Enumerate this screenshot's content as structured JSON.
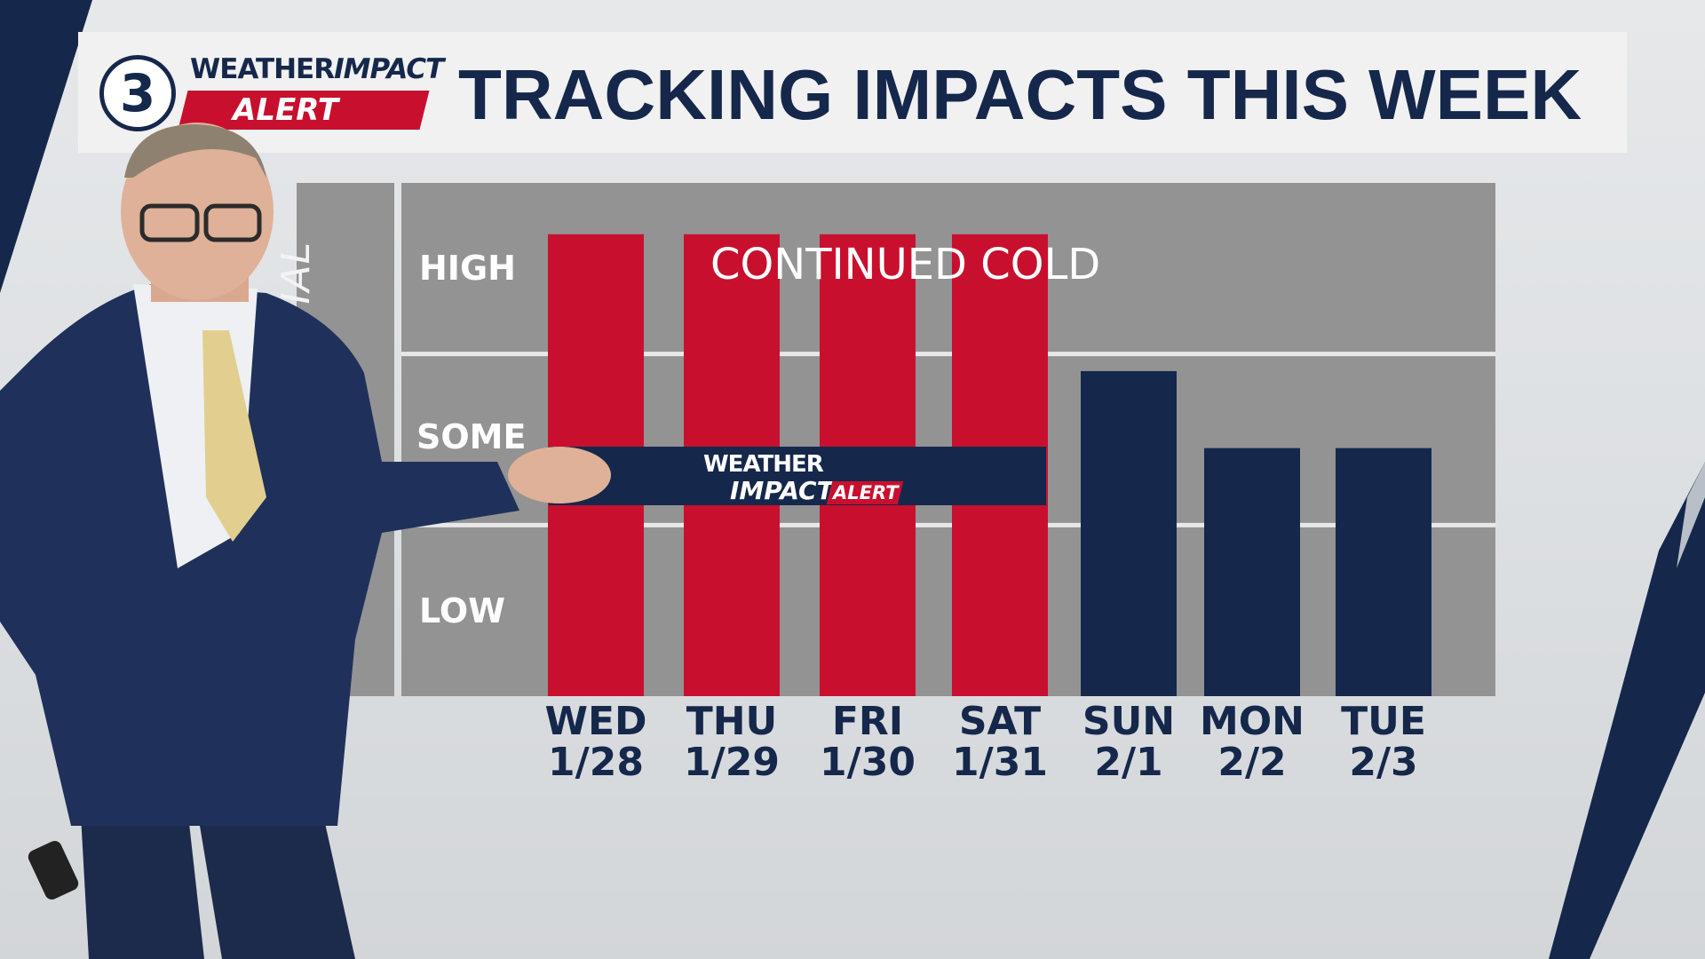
{
  "header": {
    "station_number": "3",
    "brand_weather": "WEATHER",
    "brand_impact": "IMPACT",
    "brand_alert": "ALERT",
    "title": "TRACKING IMPACTS THIS WEEK"
  },
  "chart_data": {
    "type": "bar",
    "ylabel": "IMPACT POTENTIAL",
    "y_levels": [
      "LOW",
      "SOME",
      "HIGH"
    ],
    "ylim": [
      0,
      3
    ],
    "categories": [
      "WED 1/28",
      "THU 1/29",
      "FRI 1/30",
      "SAT 1/31",
      "SUN 2/1",
      "MON 2/2",
      "TUE 2/3"
    ],
    "day_names": [
      "WED",
      "THU",
      "FRI",
      "SAT",
      "SUN",
      "MON",
      "TUE"
    ],
    "dates": [
      "1/28",
      "1/29",
      "1/30",
      "1/31",
      "2/1",
      "2/2",
      "2/3"
    ],
    "values": [
      2.7,
      2.7,
      2.7,
      2.7,
      1.9,
      1.45,
      1.45
    ],
    "alert_flags": [
      true,
      true,
      true,
      true,
      false,
      false,
      false
    ],
    "annotation": "CONTINUED COLD",
    "banner": {
      "weather": "WEATHER",
      "impact": "IMPACT",
      "alert": "ALERT"
    },
    "grid": true,
    "colors": {
      "alert": "#c8102e",
      "normal": "#15284b",
      "panel": "#939393",
      "grid": "#e8e8e8",
      "label": "#15284b"
    }
  }
}
